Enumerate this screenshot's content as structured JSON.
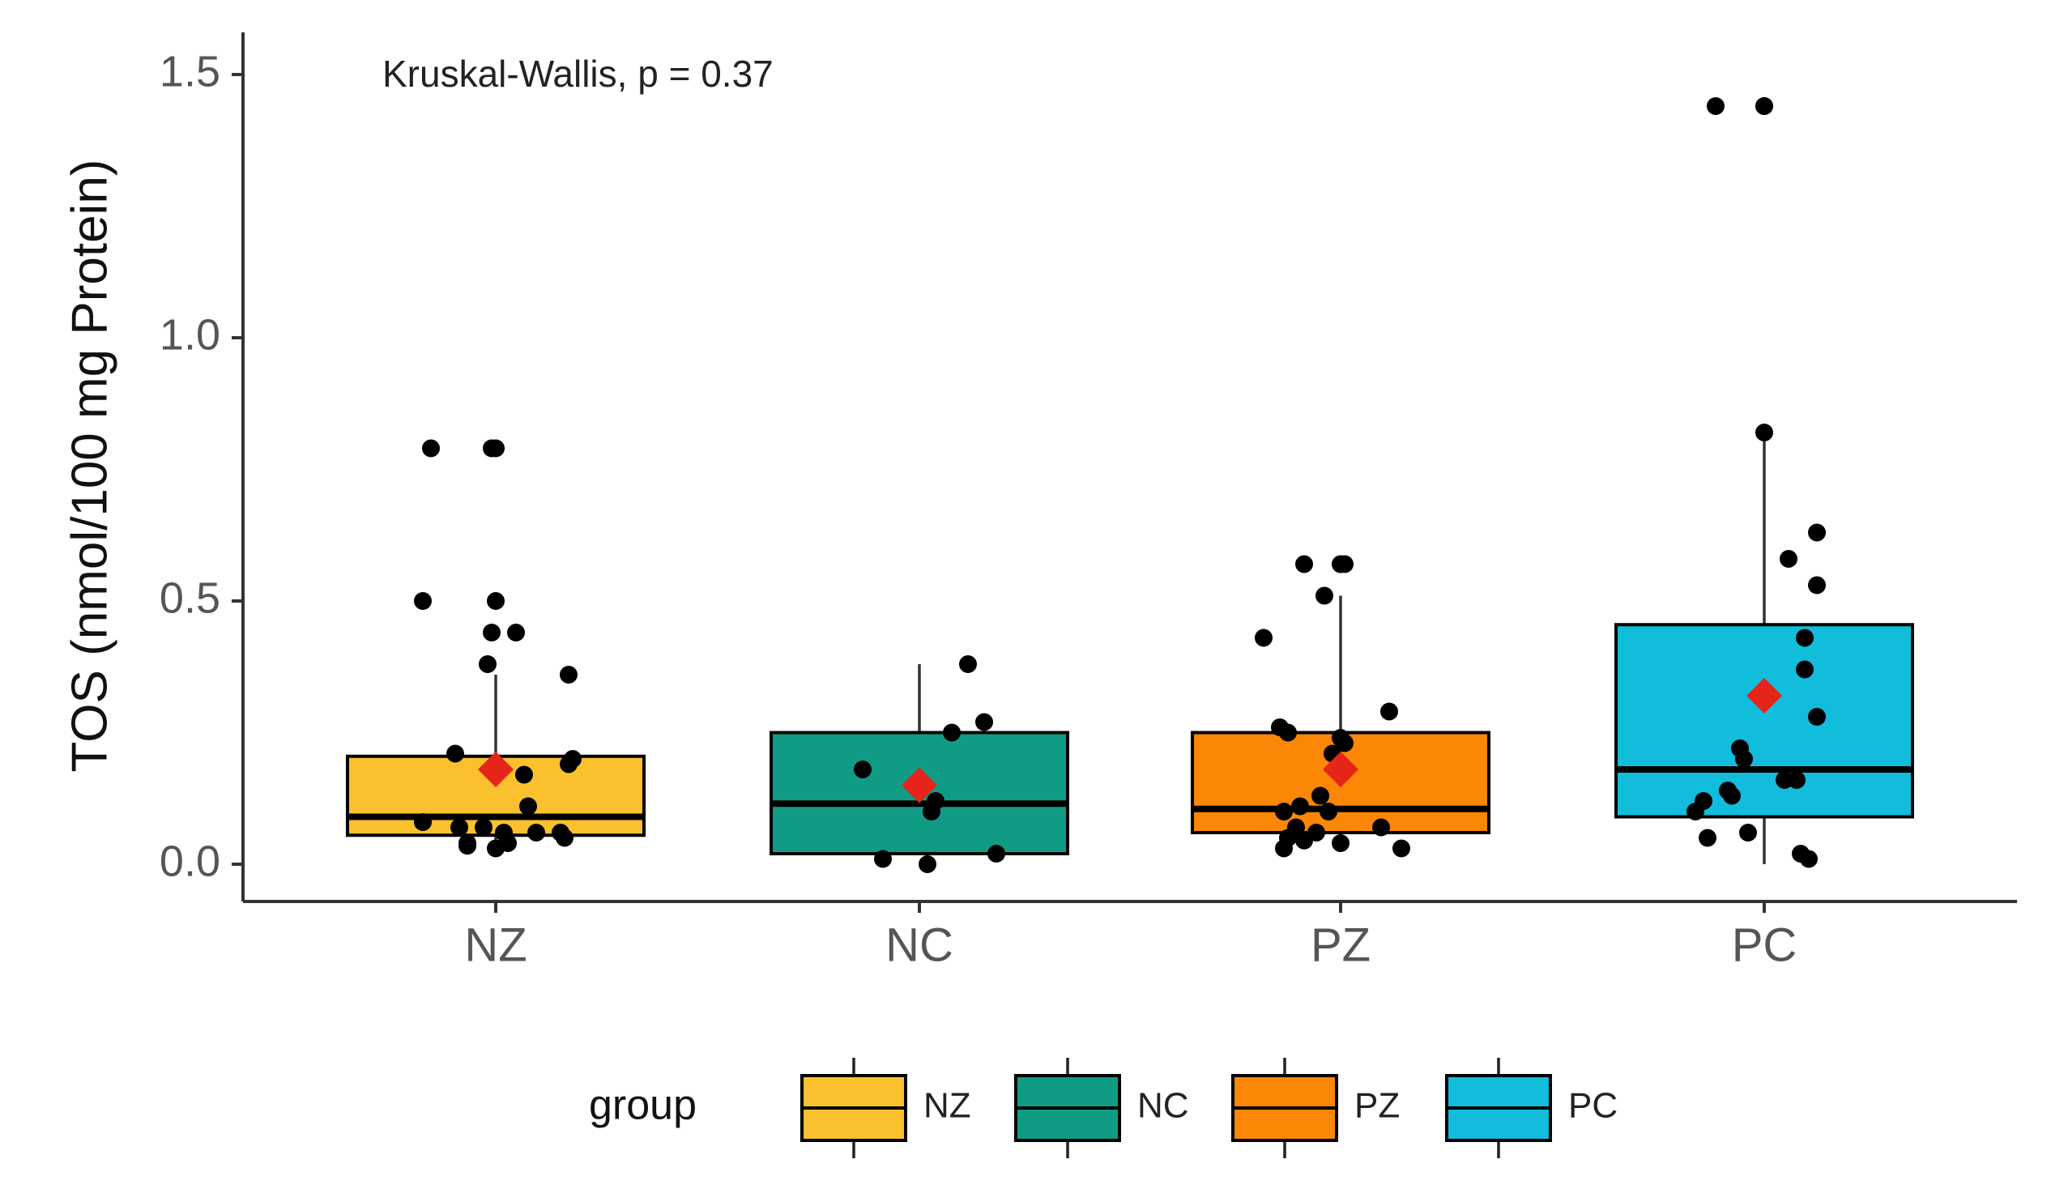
{
  "chart_data": {
    "type": "boxplot",
    "title": "",
    "annotation": "Kruskal-Wallis, p = 0.37",
    "xlabel": "",
    "ylabel": "TOS (nmol/100 mg Protein)",
    "ylim": [
      -0.07,
      1.58
    ],
    "yticks": [
      {
        "value": 0.0,
        "label": "0.0"
      },
      {
        "value": 0.5,
        "label": "0.5"
      },
      {
        "value": 1.0,
        "label": "1.0"
      },
      {
        "value": 1.5,
        "label": "1.5"
      }
    ],
    "categories": [
      "NZ",
      "NC",
      "PZ",
      "PC"
    ],
    "legend": {
      "title": "group",
      "position": "bottom",
      "items": [
        {
          "label": "NZ",
          "color": "#FBC02D"
        },
        {
          "label": "NC",
          "color": "#109C84"
        },
        {
          "label": "PZ",
          "color": "#FC8605"
        },
        {
          "label": "PC",
          "color": "#12BCDB"
        }
      ]
    },
    "colors": {
      "box_outline": "#000000",
      "whisker": "#333333",
      "points": "#000000",
      "mean_marker": "#E5241A",
      "axis": "#333333",
      "tick_label": "#555555"
    },
    "boxes": [
      {
        "group": "NZ",
        "color": "#FBC02D",
        "whisker_low": 0.03,
        "q1": 0.055,
        "median": 0.09,
        "q3": 0.205,
        "whisker_high": 0.36,
        "mean": 0.18,
        "points": [
          [
            -0.16,
            0.79
          ],
          [
            -0.01,
            0.79
          ],
          [
            0.0,
            0.79
          ],
          [
            -0.18,
            0.5
          ],
          [
            0.0,
            0.5
          ],
          [
            -0.01,
            0.44
          ],
          [
            0.05,
            0.44
          ],
          [
            -0.02,
            0.38
          ],
          [
            0.18,
            0.36
          ],
          [
            -0.1,
            0.21
          ],
          [
            0.19,
            0.2
          ],
          [
            0.18,
            0.19
          ],
          [
            0.07,
            0.17
          ],
          [
            0.08,
            0.11
          ],
          [
            -0.18,
            0.08
          ],
          [
            -0.09,
            0.07
          ],
          [
            -0.03,
            0.07
          ],
          [
            0.02,
            0.06
          ],
          [
            0.1,
            0.06
          ],
          [
            0.16,
            0.06
          ],
          [
            -0.07,
            0.04
          ],
          [
            0.03,
            0.04
          ],
          [
            0.17,
            0.05
          ],
          [
            -0.07,
            0.035
          ],
          [
            0.0,
            0.03
          ]
        ]
      },
      {
        "group": "NC",
        "color": "#109C84",
        "whisker_low": 0.02,
        "q1": 0.02,
        "median": 0.115,
        "q3": 0.25,
        "whisker_high": 0.38,
        "mean": 0.15,
        "points": [
          [
            0.12,
            0.38
          ],
          [
            0.16,
            0.27
          ],
          [
            0.08,
            0.25
          ],
          [
            -0.14,
            0.18
          ],
          [
            0.04,
            0.12
          ],
          [
            0.03,
            0.1
          ],
          [
            -0.09,
            0.01
          ],
          [
            0.02,
            0.0
          ],
          [
            0.19,
            0.02
          ]
        ]
      },
      {
        "group": "PZ",
        "color": "#FC8605",
        "whisker_low": 0.03,
        "q1": 0.06,
        "median": 0.105,
        "q3": 0.25,
        "whisker_high": 0.51,
        "mean": 0.18,
        "points": [
          [
            -0.09,
            0.57
          ],
          [
            0.0,
            0.57
          ],
          [
            0.01,
            0.57
          ],
          [
            -0.04,
            0.51
          ],
          [
            -0.19,
            0.43
          ],
          [
            0.12,
            0.29
          ],
          [
            -0.15,
            0.26
          ],
          [
            -0.13,
            0.25
          ],
          [
            0.0,
            0.24
          ],
          [
            0.01,
            0.23
          ],
          [
            -0.02,
            0.21
          ],
          [
            -0.05,
            0.13
          ],
          [
            -0.1,
            0.11
          ],
          [
            -0.14,
            0.1
          ],
          [
            -0.03,
            0.1
          ],
          [
            -0.11,
            0.07
          ],
          [
            0.1,
            0.07
          ],
          [
            -0.06,
            0.06
          ],
          [
            -0.13,
            0.05
          ],
          [
            -0.09,
            0.045
          ],
          [
            0.0,
            0.04
          ],
          [
            -0.14,
            0.03
          ],
          [
            0.15,
            0.03
          ]
        ]
      },
      {
        "group": "PC",
        "color": "#12BCDB",
        "whisker_low": 0.0,
        "q1": 0.09,
        "median": 0.18,
        "q3": 0.455,
        "whisker_high": 0.82,
        "mean": 0.32,
        "points": [
          [
            -0.12,
            1.44
          ],
          [
            0.0,
            1.44
          ],
          [
            0.0,
            1.44
          ],
          [
            0.0,
            0.82
          ],
          [
            0.13,
            0.63
          ],
          [
            0.06,
            0.58
          ],
          [
            0.13,
            0.53
          ],
          [
            0.1,
            0.43
          ],
          [
            0.1,
            0.37
          ],
          [
            0.13,
            0.28
          ],
          [
            -0.06,
            0.22
          ],
          [
            -0.05,
            0.2
          ],
          [
            0.08,
            0.16
          ],
          [
            0.05,
            0.16
          ],
          [
            -0.09,
            0.14
          ],
          [
            -0.08,
            0.13
          ],
          [
            -0.15,
            0.12
          ],
          [
            -0.17,
            0.1
          ],
          [
            -0.04,
            0.06
          ],
          [
            -0.14,
            0.05
          ],
          [
            0.09,
            0.02
          ],
          [
            0.11,
            0.01
          ]
        ]
      }
    ]
  }
}
